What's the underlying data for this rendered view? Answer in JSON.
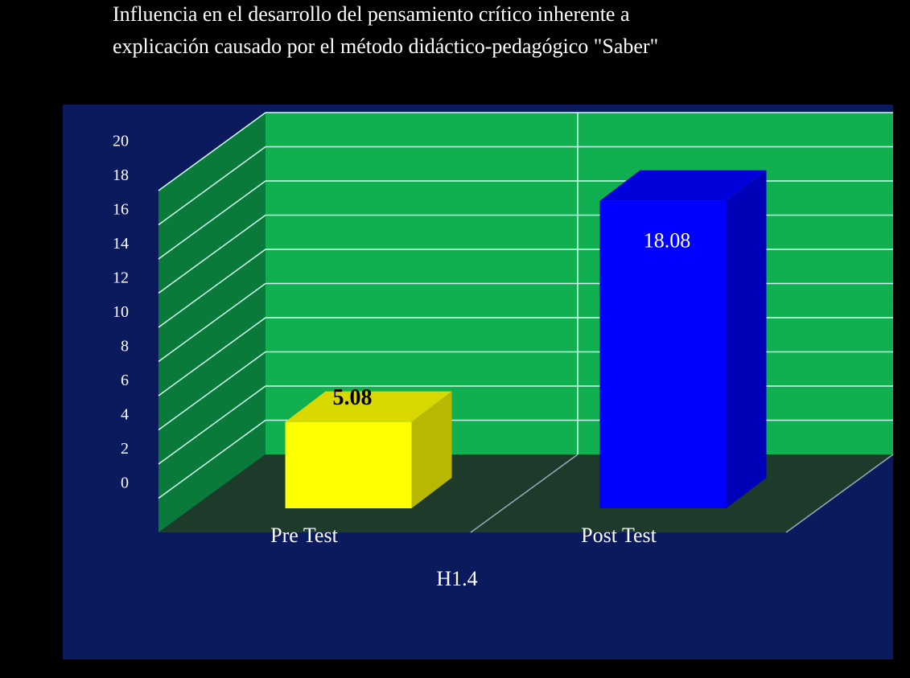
{
  "chart_data": {
    "type": "bar3d",
    "title": [
      "Influencia en el desarrollo del pensamiento crítico inherente a",
      "explicación causado por el método didáctico-pedagógico \"Saber\""
    ],
    "x_label": "H1.4",
    "categories": [
      "Pre Test",
      "Post Test"
    ],
    "values": [
      5.08,
      18.08
    ],
    "colors": [
      "#ffff00",
      "#0000ff"
    ],
    "ylim": [
      0,
      20
    ],
    "yticks": [
      0,
      2,
      4,
      6,
      8,
      10,
      12,
      14,
      16,
      18,
      20
    ],
    "grid": true
  }
}
